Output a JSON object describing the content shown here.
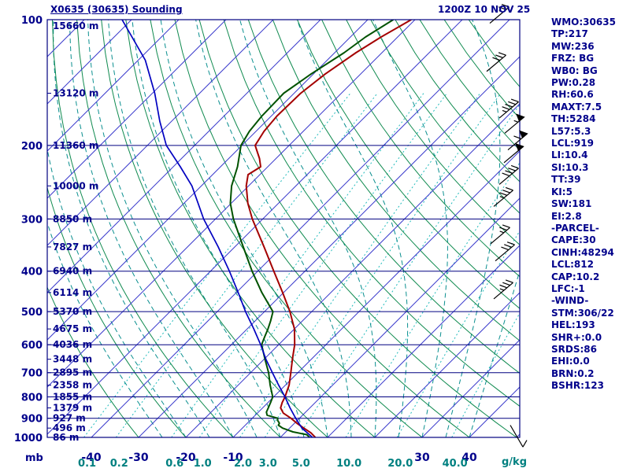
{
  "header": {
    "title": "X0635 (30635) Sounding",
    "datetime": "1200Z 10 NOV 25"
  },
  "stats": {
    "lines": [
      "WMO:30635",
      "TP:217",
      "MW:236",
      "FRZ: BG",
      "WB0: BG",
      "PW:0.28",
      "RH:60.6",
      "MAXT:7.5",
      "TH:5284",
      "L57:5.3",
      "LCL:919",
      "LI:10.4",
      "SI:10.3",
      "TT:39",
      "KI:5",
      "SW:181",
      "EI:2.8",
      "-PARCEL-",
      "CAPE:30",
      "CINH:48294",
      "LCL:812",
      "CAP:10.2",
      "LFC:-1",
      "-WIND-",
      "STM:306/22",
      "HEL:193",
      "SHR+:0.0",
      "SRDS:86",
      "EHI:0.0",
      "BRN:0.2",
      "BSHR:123"
    ]
  },
  "axes": {
    "pressure_unit": "mb",
    "mixing_unit": "g/kg",
    "pressure_ticks": [
      100,
      200,
      300,
      400,
      500,
      600,
      700,
      800,
      900,
      1000
    ],
    "temp_ticks": [
      -40,
      -30,
      -20,
      -10,
      30,
      40
    ],
    "mixing_ticks": [
      "0.1",
      "0.2",
      "0.6",
      "1.0",
      "2.0",
      "3.0",
      "5.0",
      "10.0",
      "20.0",
      "40.0"
    ],
    "height_labels": [
      {
        "p": 100,
        "label": "15660 m"
      },
      {
        "p": 150,
        "label": "13120 m"
      },
      {
        "p": 200,
        "label": "11360 m"
      },
      {
        "p": 250,
        "label": "10000 m"
      },
      {
        "p": 300,
        "label": "8850 m"
      },
      {
        "p": 350,
        "label": "7827 m"
      },
      {
        "p": 400,
        "label": "6940 m"
      },
      {
        "p": 450,
        "label": "6114 m"
      },
      {
        "p": 500,
        "label": "5370 m"
      },
      {
        "p": 550,
        "label": "4675 m"
      },
      {
        "p": 600,
        "label": "4036 m"
      },
      {
        "p": 650,
        "label": "3448 m"
      },
      {
        "p": 700,
        "label": "2895 m"
      },
      {
        "p": 750,
        "label": "2358 m"
      },
      {
        "p": 800,
        "label": "1855 m"
      },
      {
        "p": 850,
        "label": "1379 m"
      },
      {
        "p": 900,
        "label": "927 m"
      },
      {
        "p": 950,
        "label": "496 m"
      },
      {
        "p": 1000,
        "label": "86 m"
      }
    ]
  },
  "colors": {
    "navy": "#00008B",
    "teal": "#008080",
    "isotherm": "#3c3ccc",
    "dry_adiabat": "#0f8a4f",
    "moist_adiabat": "#0a8f8f",
    "mixing_ratio": "#22bbbb",
    "pressure_line": "#000080",
    "temperature_trace": "#a40000",
    "dewpoint_trace": "#005200",
    "parcel_trace": "#0000c0",
    "wind_barb": "#000000",
    "background": "#ffffff"
  },
  "chart_data": {
    "type": "skewt",
    "pressure_range_mb": [
      100,
      1000
    ],
    "temp_axis_c_at_1000mb": [
      -49,
      51
    ],
    "skew_deg": 45,
    "grid": {
      "isotherms": {
        "min": -140,
        "max": 50,
        "step": 10
      },
      "dry_adiabats": {
        "min": -30,
        "max": 160,
        "step": 10
      },
      "moist_adiabats": {
        "min": -25,
        "max": 40,
        "step": 5
      },
      "mixing_ratio_lines": [
        "0.1",
        "0.2",
        "0.6",
        "1.0",
        "2.0",
        "3.0",
        "5.0",
        "10.0",
        "20.0",
        "40.0"
      ]
    },
    "series": [
      {
        "name": "temperature",
        "color": "#a40000",
        "width": 2,
        "points": [
          [
            1000,
            7.4
          ],
          [
            975,
            5.5
          ],
          [
            950,
            3.0
          ],
          [
            925,
            0.5
          ],
          [
            900,
            -1.8
          ],
          [
            875,
            -4.5
          ],
          [
            850,
            -6.2
          ],
          [
            825,
            -7.0
          ],
          [
            800,
            -7.6
          ],
          [
            775,
            -8.4
          ],
          [
            750,
            -9.2
          ],
          [
            700,
            -11.5
          ],
          [
            650,
            -14.0
          ],
          [
            600,
            -16.6
          ],
          [
            550,
            -20.0
          ],
          [
            500,
            -24.6
          ],
          [
            450,
            -30.2
          ],
          [
            400,
            -36.6
          ],
          [
            350,
            -43.8
          ],
          [
            300,
            -52.2
          ],
          [
            275,
            -56.5
          ],
          [
            250,
            -60.5
          ],
          [
            235,
            -62.5
          ],
          [
            225,
            -61.5
          ],
          [
            215,
            -63.5
          ],
          [
            200,
            -67.2
          ],
          [
            185,
            -68.3
          ],
          [
            170,
            -68.8
          ],
          [
            150,
            -68.6
          ],
          [
            135,
            -67.5
          ],
          [
            120,
            -65.5
          ],
          [
            110,
            -63.5
          ],
          [
            100,
            -60.8
          ]
        ]
      },
      {
        "name": "dewpoint",
        "color": "#005200",
        "width": 2,
        "points": [
          [
            1000,
            6.2
          ],
          [
            985,
            5.0
          ],
          [
            970,
            1.5
          ],
          [
            950,
            -1.5
          ],
          [
            935,
            -3.0
          ],
          [
            925,
            -3.2
          ],
          [
            910,
            -4.2
          ],
          [
            900,
            -4.6
          ],
          [
            885,
            -7.5
          ],
          [
            870,
            -8.3
          ],
          [
            850,
            -8.8
          ],
          [
            820,
            -9.6
          ],
          [
            800,
            -10.2
          ],
          [
            750,
            -13.2
          ],
          [
            700,
            -16.2
          ],
          [
            650,
            -19.8
          ],
          [
            600,
            -23.6
          ],
          [
            575,
            -24.6
          ],
          [
            550,
            -25.6
          ],
          [
            525,
            -26.8
          ],
          [
            500,
            -28.2
          ],
          [
            450,
            -34.6
          ],
          [
            400,
            -41.2
          ],
          [
            350,
            -48.2
          ],
          [
            300,
            -56.2
          ],
          [
            275,
            -60.2
          ],
          [
            250,
            -63.6
          ],
          [
            225,
            -66.4
          ],
          [
            200,
            -70.2
          ],
          [
            185,
            -71.4
          ],
          [
            170,
            -72.0
          ],
          [
            150,
            -72.2
          ],
          [
            135,
            -70.5
          ],
          [
            120,
            -68.0
          ],
          [
            110,
            -66.8
          ],
          [
            100,
            -64.6
          ]
        ]
      },
      {
        "name": "parcel",
        "color": "#0000c0",
        "width": 1.7,
        "points": [
          [
            1000,
            6.8
          ],
          [
            950,
            2.6
          ],
          [
            900,
            -0.8
          ],
          [
            850,
            -4.2
          ],
          [
            800,
            -7.6
          ],
          [
            750,
            -11.4
          ],
          [
            700,
            -15.4
          ],
          [
            650,
            -19.6
          ],
          [
            600,
            -23.8
          ],
          [
            550,
            -28.6
          ],
          [
            500,
            -34.0
          ],
          [
            450,
            -39.6
          ],
          [
            400,
            -46.0
          ],
          [
            350,
            -53.5
          ],
          [
            300,
            -62.5
          ],
          [
            250,
            -72.0
          ],
          [
            225,
            -78.5
          ],
          [
            200,
            -86.0
          ],
          [
            175,
            -92.5
          ],
          [
            150,
            -99.5
          ],
          [
            125,
            -108.5
          ],
          [
            100,
            -122.0
          ]
        ]
      }
    ],
    "wind_barbs": [
      {
        "p": 102,
        "x": 622,
        "dir": 50,
        "spd": 25
      },
      {
        "p": 133,
        "x": 618,
        "dir": 50,
        "spd": 30
      },
      {
        "p": 172,
        "x": 634,
        "dir": 50,
        "spd": 45
      },
      {
        "p": 187,
        "x": 641,
        "dir": 50,
        "spd": 55
      },
      {
        "p": 205,
        "x": 645,
        "dir": 50,
        "spd": 60
      },
      {
        "p": 220,
        "x": 640,
        "dir": 50,
        "spd": 50
      },
      {
        "p": 248,
        "x": 634,
        "dir": 50,
        "spd": 40
      },
      {
        "p": 280,
        "x": 627,
        "dir": 50,
        "spd": 35
      },
      {
        "p": 344,
        "x": 623,
        "dir": 50,
        "spd": 25
      },
      {
        "p": 378,
        "x": 629,
        "dir": 50,
        "spd": 30
      },
      {
        "p": 466,
        "x": 627,
        "dir": 50,
        "spd": 35
      },
      {
        "p": 935,
        "x": 648,
        "dir": 150,
        "spd": 10
      }
    ]
  }
}
